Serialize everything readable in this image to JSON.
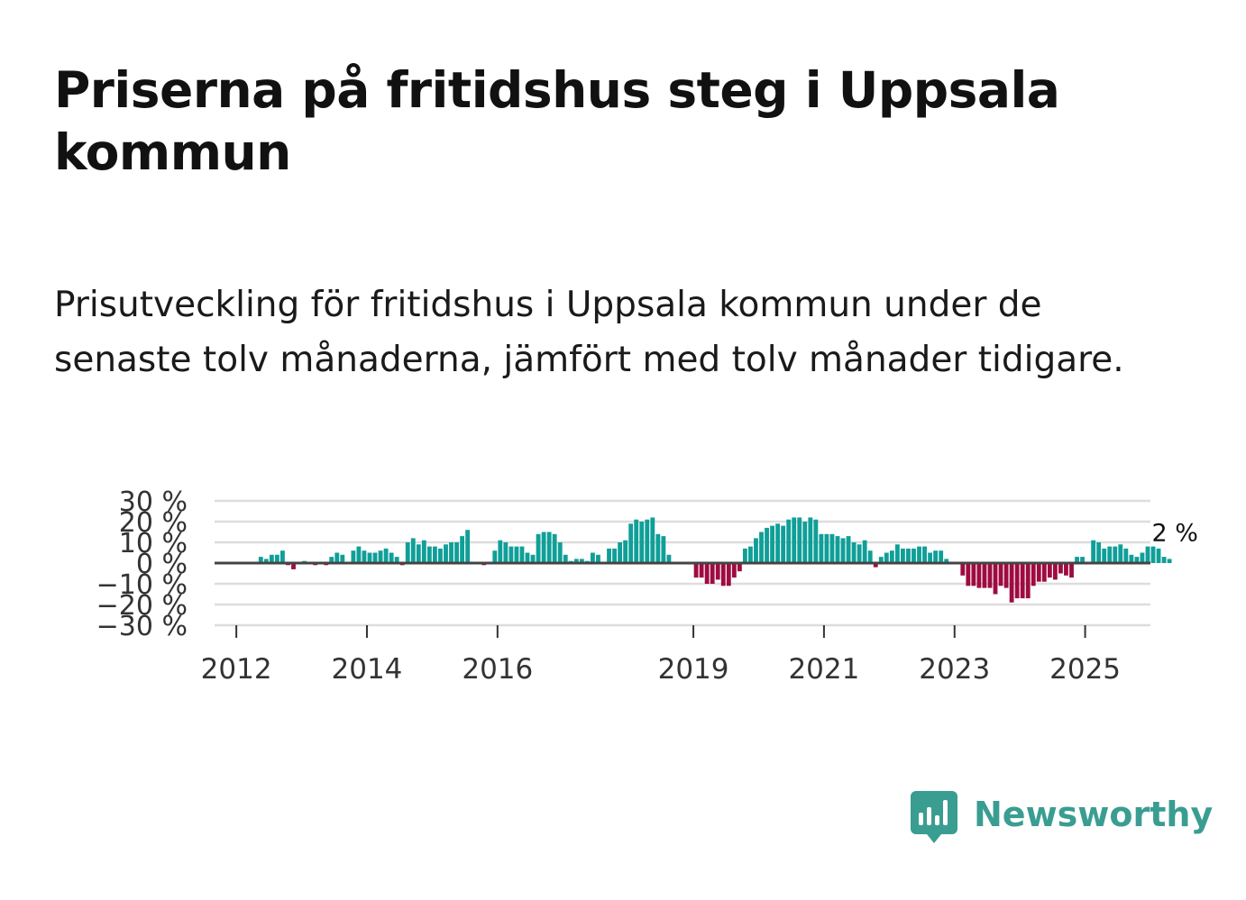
{
  "title": "Priserna på fritidshus steg i Uppsala kommun",
  "subtitle": "Prisutveckling för fritidshus i Uppsala kommun under de senaste tolv månaderna, jämfört med tolv månader tidigare.",
  "brand": {
    "name": "Newsworthy",
    "icon": "newsworthy-logo-icon"
  },
  "colors": {
    "positive": "#0f9f98",
    "negative": "#9e0b41",
    "grid": "#dddddd",
    "zero_line": "#444444",
    "brand": "#3a9d92"
  },
  "chart_data": {
    "type": "bar",
    "title": "",
    "xlabel": "",
    "ylabel": "",
    "x_start": "2011-09",
    "x_end": "2025-12",
    "interval": "month",
    "ylim": [
      -30,
      30
    ],
    "y_ticks": [
      30,
      20,
      10,
      0,
      -10,
      -20,
      -30
    ],
    "y_tick_labels": [
      "30 %",
      "20 %",
      "10 %",
      "0 %",
      "−10 %",
      "−20 %",
      "−30 %"
    ],
    "x_ticks": [
      2012,
      2014,
      2016,
      2019,
      2021,
      2023,
      2025
    ],
    "x_tick_labels": [
      "2012",
      "2014",
      "2016",
      "2019",
      "2021",
      "2023",
      "2025"
    ],
    "grid": true,
    "legend": "none",
    "last_value_label": "2 %",
    "values": [
      null,
      null,
      null,
      null,
      null,
      null,
      null,
      null,
      3,
      2,
      4,
      4,
      6,
      -1,
      -3,
      0,
      1,
      0,
      -1,
      0,
      -1,
      3,
      5,
      4,
      0,
      6,
      8,
      6,
      5,
      5,
      6,
      7,
      5,
      3,
      -1,
      10,
      12,
      9,
      11,
      8,
      8,
      7,
      9,
      10,
      10,
      13,
      16,
      0,
      0,
      -1,
      0,
      6,
      11,
      10,
      8,
      8,
      8,
      5,
      4,
      14,
      15,
      15,
      14,
      10,
      4,
      1,
      2,
      2,
      1,
      5,
      4,
      0,
      7,
      7,
      10,
      11,
      19,
      21,
      20,
      21,
      22,
      14,
      13,
      4,
      0,
      0,
      0,
      0,
      -7,
      -7,
      -10,
      -10,
      -8,
      -11,
      -11,
      -7,
      -4,
      7,
      8,
      12,
      15,
      17,
      18,
      19,
      18,
      21,
      22,
      22,
      20,
      22,
      21,
      14,
      14,
      14,
      13,
      12,
      13,
      10,
      9,
      11,
      6,
      -2,
      3,
      5,
      6,
      9,
      7,
      7,
      7,
      8,
      8,
      5,
      6,
      6,
      2,
      0,
      0,
      -6,
      -11,
      -11,
      -12,
      -12,
      -12,
      -15,
      -11,
      -12,
      -19,
      -17,
      -17,
      -17,
      -11,
      -9,
      -9,
      -7,
      -8,
      -5,
      -6,
      -7,
      3,
      3,
      0,
      11,
      10,
      7,
      8,
      8,
      9,
      7,
      4,
      3,
      5,
      8,
      8,
      7,
      3,
      2
    ]
  }
}
